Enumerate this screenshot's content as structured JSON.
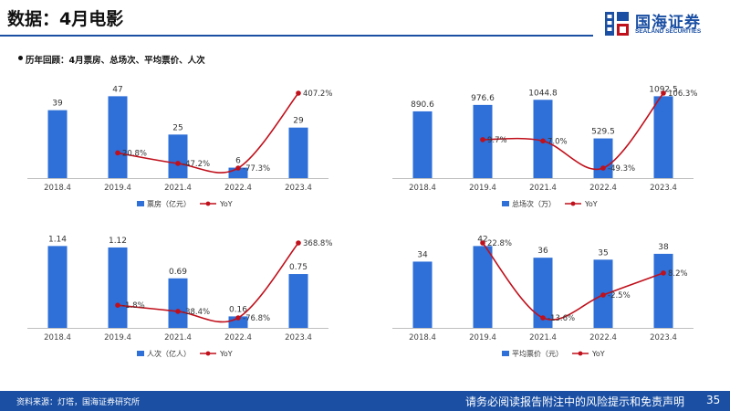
{
  "header": {
    "title": "数据：4月电影",
    "subtitle": "历年回顾：4月票房、总场次、平均票价、人次"
  },
  "logo": {
    "name_cn": "国海证券",
    "name_en": "SEALAND SECURITIES",
    "icon": "sealand-logo-icon"
  },
  "footer": {
    "source": "资料来源：灯塔，国海证券研究所",
    "disclaimer": "请务必阅读报告附注中的风险提示和免责声明",
    "page": "35"
  },
  "colors": {
    "bar": "#2e6fd8",
    "line": "#c0101b",
    "brand": "#1a4fa3"
  },
  "chart_data": [
    {
      "type": "bar",
      "categories": [
        "2018.4",
        "2019.4",
        "2021.4",
        "2022.4",
        "2023.4"
      ],
      "series": [
        {
          "name": "票房（亿元）",
          "type": "bar",
          "values": [
            39,
            47,
            25,
            6,
            29
          ],
          "labels": [
            "39",
            "47",
            "25",
            "6",
            "29"
          ]
        },
        {
          "name": "YoY",
          "type": "line",
          "values": [
            null,
            20.8,
            -47.2,
            -77.3,
            407.2
          ],
          "labels": [
            "",
            "20.8%",
            "-47.2%",
            "-77.3%",
            "407.2%"
          ]
        }
      ]
    },
    {
      "type": "bar",
      "categories": [
        "2018.4",
        "2019.4",
        "2021.4",
        "2022.4",
        "2023.4"
      ],
      "series": [
        {
          "name": "总场次（万）",
          "type": "bar",
          "values": [
            890.6,
            976.6,
            1044.8,
            529.5,
            1092.5
          ],
          "labels": [
            "890.6",
            "976.6",
            "1044.8",
            "529.5",
            "1092.5"
          ]
        },
        {
          "name": "YoY",
          "type": "line",
          "values": [
            null,
            9.7,
            7.0,
            -49.3,
            106.3
          ],
          "labels": [
            "",
            "9.7%",
            "7.0%",
            "-49.3%",
            "106.3%"
          ]
        }
      ]
    },
    {
      "type": "bar",
      "categories": [
        "2018.4",
        "2019.4",
        "2021.4",
        "2022.4",
        "2023.4"
      ],
      "series": [
        {
          "name": "人次（亿人）",
          "type": "bar",
          "values": [
            1.14,
            1.12,
            0.69,
            0.16,
            0.75
          ],
          "labels": [
            "1.14",
            "1.12",
            "0.69",
            "0.16",
            "0.75"
          ]
        },
        {
          "name": "YoY",
          "type": "line",
          "values": [
            null,
            -1.8,
            -38.4,
            -76.8,
            368.8
          ],
          "labels": [
            "",
            "-1.8%",
            "-38.4%",
            "-76.8%",
            "368.8%"
          ]
        }
      ]
    },
    {
      "type": "bar",
      "categories": [
        "2018.4",
        "2019.4",
        "2021.4",
        "2022.4",
        "2023.4"
      ],
      "series": [
        {
          "name": "平均票价（元）",
          "type": "bar",
          "values": [
            34,
            42,
            36,
            35,
            38
          ],
          "labels": [
            "34",
            "42",
            "36",
            "35",
            "38"
          ]
        },
        {
          "name": "YoY",
          "type": "line",
          "values": [
            null,
            22.8,
            -13.6,
            -2.5,
            8.2
          ],
          "labels": [
            "",
            "22.8%",
            "-13.6%",
            "-2.5%",
            "8.2%"
          ]
        }
      ]
    }
  ]
}
